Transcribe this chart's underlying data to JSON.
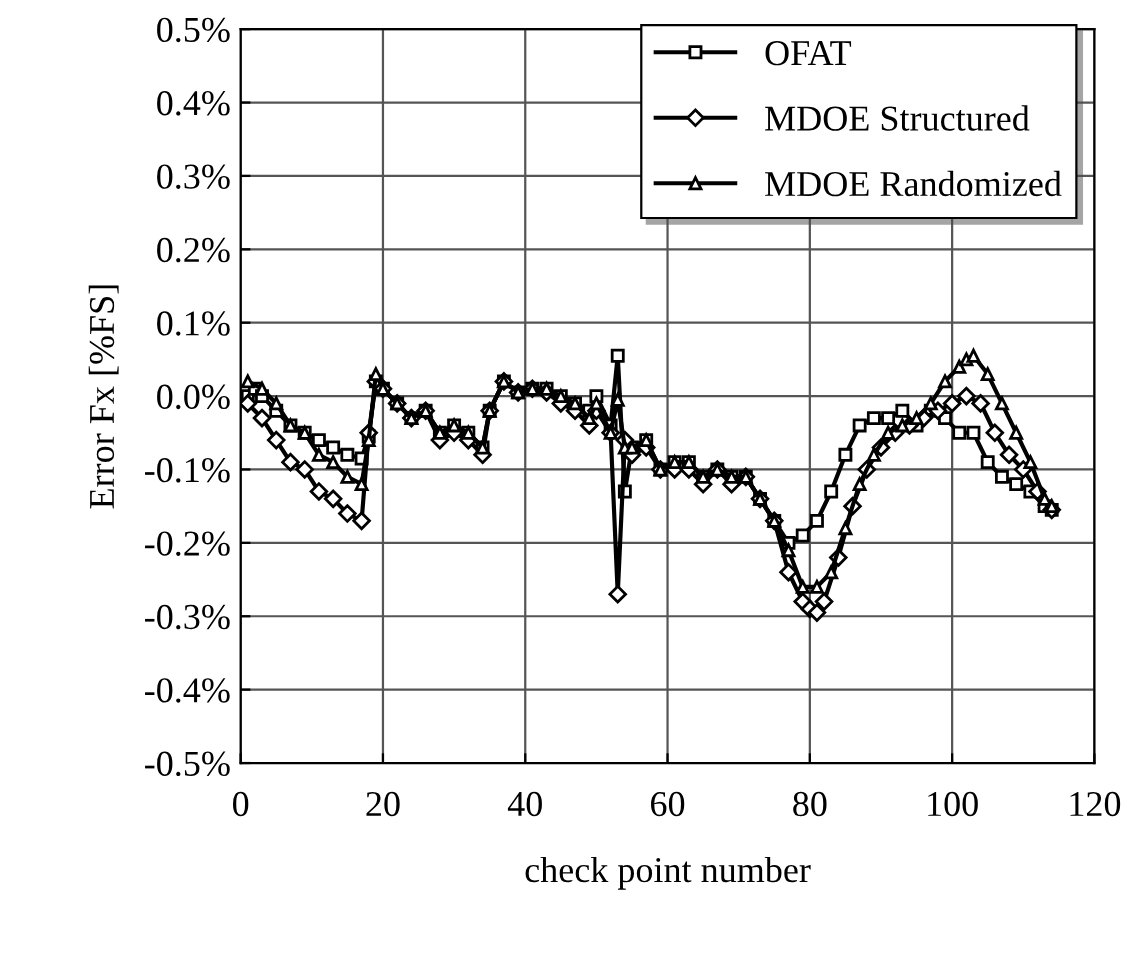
{
  "chart_data": {
    "type": "line",
    "xlabel": "check point number",
    "ylabel": "Error Fx [%FS]",
    "xlim": [
      0,
      120
    ],
    "xticks": [
      0,
      20,
      40,
      60,
      80,
      100,
      120
    ],
    "ylim": [
      -0.5,
      0.5
    ],
    "yticks": [
      {
        "value": -0.5,
        "label": "-0.5%"
      },
      {
        "value": -0.4,
        "label": "-0.4%"
      },
      {
        "value": -0.3,
        "label": "-0.3%"
      },
      {
        "value": -0.2,
        "label": "-0.2%"
      },
      {
        "value": -0.1,
        "label": "-0.1%"
      },
      {
        "value": 0,
        "label": "0.0%"
      },
      {
        "value": 0.1,
        "label": "0.1%"
      },
      {
        "value": 0.2,
        "label": "0.2%"
      },
      {
        "value": 0.3,
        "label": "0.3%"
      },
      {
        "value": 0.4,
        "label": "0.4%"
      },
      {
        "value": 0.5,
        "label": "0.5%"
      }
    ],
    "grid": true,
    "legend": "top right",
    "line_style": "solid",
    "series": [
      {
        "name": "OFAT",
        "color": "#000000",
        "marker": "square",
        "x": [
          1,
          2,
          3,
          5,
          7,
          9,
          11,
          13,
          15,
          17,
          18,
          19,
          20,
          22,
          24,
          26,
          28,
          30,
          32,
          34,
          35,
          37,
          39,
          41,
          43,
          45,
          47,
          49,
          50,
          52,
          53,
          54,
          55,
          57,
          59,
          61,
          63,
          65,
          67,
          69,
          71,
          73,
          75,
          77,
          79,
          81,
          83,
          85,
          87,
          89,
          91,
          93,
          95,
          97,
          99,
          101,
          103,
          105,
          107,
          109,
          111,
          113,
          114
        ],
        "values": [
          0.0,
          0.01,
          0.0,
          -0.02,
          -0.04,
          -0.05,
          -0.06,
          -0.07,
          -0.08,
          -0.085,
          -0.055,
          0.02,
          0.01,
          -0.01,
          -0.03,
          -0.02,
          -0.05,
          -0.04,
          -0.05,
          -0.07,
          -0.02,
          0.02,
          0.005,
          0.01,
          0.01,
          0.0,
          -0.01,
          -0.02,
          0.0,
          -0.04,
          0.055,
          -0.13,
          -0.07,
          -0.06,
          -0.1,
          -0.09,
          -0.09,
          -0.11,
          -0.1,
          -0.11,
          -0.11,
          -0.14,
          -0.17,
          -0.2,
          -0.19,
          -0.17,
          -0.13,
          -0.08,
          -0.04,
          -0.03,
          -0.03,
          -0.02,
          -0.04,
          -0.02,
          -0.03,
          -0.05,
          -0.05,
          -0.09,
          -0.11,
          -0.12,
          -0.13,
          -0.15,
          -0.155
        ]
      },
      {
        "name": "MDOE Structured",
        "color": "#000000",
        "marker": "diamond",
        "x": [
          1,
          3,
          5,
          7,
          9,
          11,
          13,
          15,
          17,
          18,
          19,
          20,
          22,
          24,
          26,
          28,
          30,
          32,
          34,
          35,
          37,
          39,
          41,
          43,
          45,
          47,
          49,
          50,
          52,
          53,
          54,
          55,
          57,
          59,
          61,
          63,
          65,
          67,
          69,
          71,
          73,
          75,
          77,
          79,
          80,
          81,
          82,
          84,
          86,
          88,
          90,
          92,
          94,
          96,
          98,
          100,
          102,
          104,
          106,
          108,
          110,
          112,
          114
        ],
        "values": [
          -0.01,
          -0.03,
          -0.06,
          -0.09,
          -0.1,
          -0.13,
          -0.14,
          -0.16,
          -0.17,
          -0.05,
          0.02,
          0.01,
          -0.01,
          -0.03,
          -0.02,
          -0.06,
          -0.05,
          -0.06,
          -0.08,
          -0.02,
          0.02,
          0.005,
          0.01,
          0.005,
          -0.01,
          -0.02,
          -0.04,
          -0.02,
          -0.05,
          -0.27,
          -0.06,
          -0.08,
          -0.07,
          -0.1,
          -0.1,
          -0.1,
          -0.12,
          -0.1,
          -0.12,
          -0.11,
          -0.14,
          -0.17,
          -0.24,
          -0.28,
          -0.29,
          -0.295,
          -0.28,
          -0.22,
          -0.15,
          -0.1,
          -0.07,
          -0.05,
          -0.04,
          -0.03,
          -0.02,
          -0.01,
          0.0,
          -0.01,
          -0.05,
          -0.08,
          -0.1,
          -0.13,
          -0.155
        ]
      },
      {
        "name": "MDOE Randomized",
        "color": "#000000",
        "marker": "triangle",
        "x": [
          1,
          3,
          5,
          7,
          9,
          11,
          13,
          15,
          17,
          18,
          19,
          20,
          22,
          24,
          26,
          28,
          30,
          32,
          34,
          35,
          37,
          39,
          41,
          43,
          45,
          47,
          49,
          50,
          52,
          53,
          54,
          55,
          57,
          59,
          61,
          63,
          65,
          67,
          69,
          71,
          73,
          75,
          77,
          79,
          81,
          83,
          85,
          87,
          89,
          91,
          93,
          95,
          97,
          99,
          101,
          102,
          103,
          105,
          107,
          109,
          111,
          113,
          114
        ],
        "values": [
          0.02,
          0.01,
          -0.01,
          -0.04,
          -0.05,
          -0.08,
          -0.09,
          -0.11,
          -0.12,
          -0.06,
          0.03,
          0.01,
          -0.01,
          -0.03,
          -0.02,
          -0.05,
          -0.04,
          -0.05,
          -0.07,
          -0.02,
          0.02,
          0.005,
          0.01,
          0.01,
          0.0,
          -0.01,
          -0.03,
          -0.01,
          -0.05,
          -0.005,
          -0.07,
          -0.07,
          -0.06,
          -0.1,
          -0.09,
          -0.09,
          -0.11,
          -0.1,
          -0.11,
          -0.11,
          -0.14,
          -0.17,
          -0.21,
          -0.26,
          -0.26,
          -0.24,
          -0.18,
          -0.12,
          -0.08,
          -0.05,
          -0.04,
          -0.03,
          -0.01,
          0.02,
          0.04,
          0.05,
          0.055,
          0.03,
          -0.01,
          -0.05,
          -0.09,
          -0.14,
          -0.15
        ]
      }
    ]
  }
}
